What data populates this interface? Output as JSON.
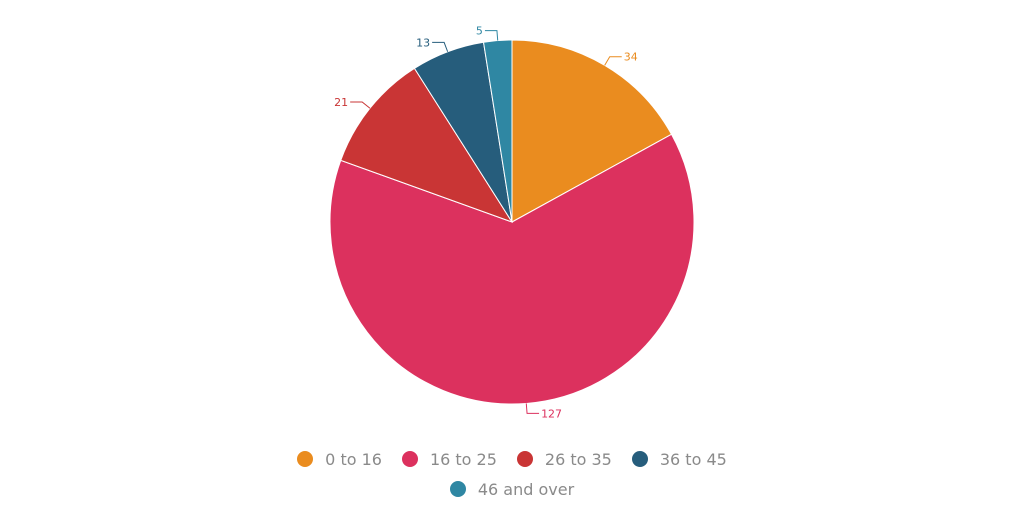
{
  "chart_data": {
    "type": "pie",
    "categories": [
      "0 to 16",
      "16 to 25",
      "26 to 35",
      "36 to 45",
      "46 and over"
    ],
    "values": [
      34,
      127,
      21,
      13,
      5
    ],
    "colors": [
      "#ea8c1f",
      "#dc315e",
      "#c93535",
      "#265d7c",
      "#2f87a3"
    ],
    "title": "",
    "legend_position": "bottom",
    "start_angle_deg": 0,
    "direction": "clockwise"
  },
  "legend": {
    "items": [
      {
        "label": "0 to 16",
        "color": "#ea8c1f"
      },
      {
        "label": "16 to 25",
        "color": "#dc315e"
      },
      {
        "label": "26 to 35",
        "color": "#c93535"
      },
      {
        "label": "36 to 45",
        "color": "#265d7c"
      },
      {
        "label": "46 and over",
        "color": "#2f87a3"
      }
    ]
  }
}
